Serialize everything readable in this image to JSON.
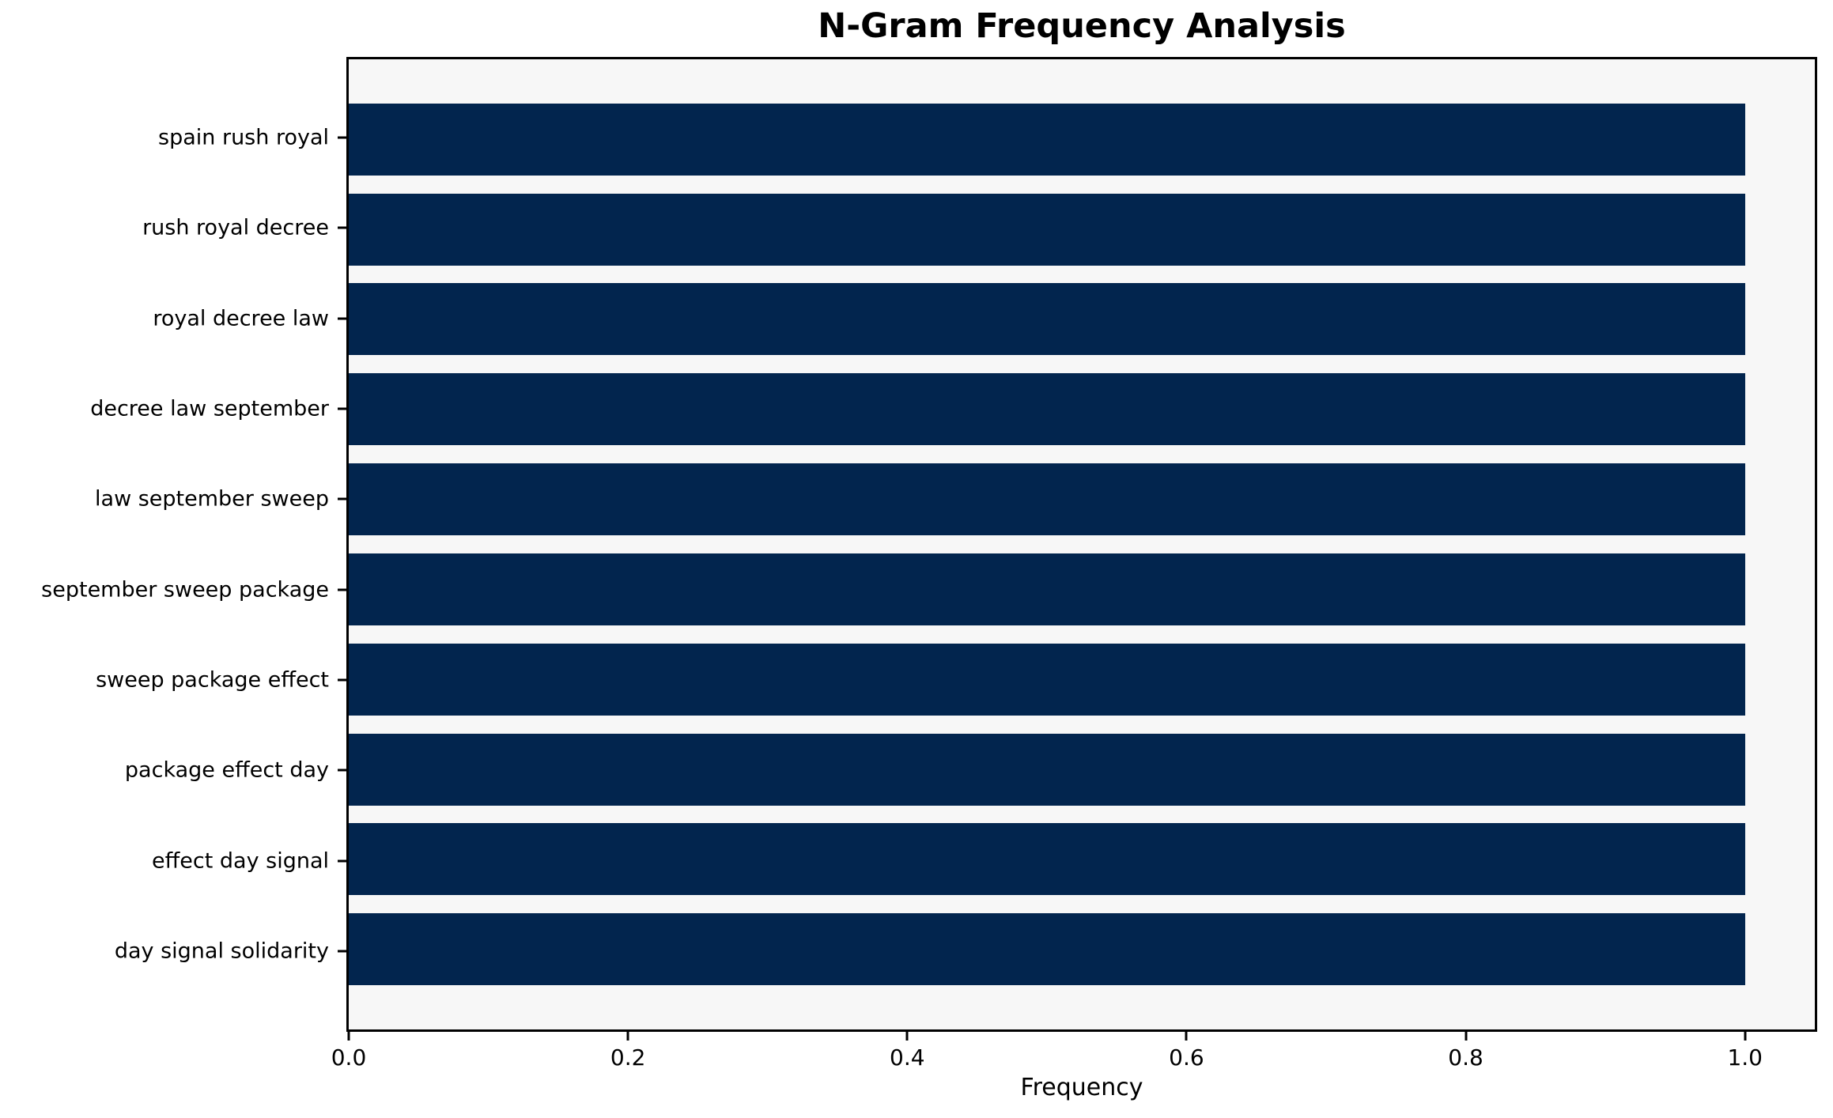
{
  "chart_data": {
    "type": "bar",
    "orientation": "horizontal",
    "title": "N-Gram Frequency Analysis",
    "xlabel": "Frequency",
    "ylabel": "",
    "categories": [
      "spain rush royal",
      "rush royal decree",
      "royal decree law",
      "decree law september",
      "law september sweep",
      "september sweep package",
      "sweep package effect",
      "package effect day",
      "effect day signal",
      "day signal solidarity"
    ],
    "values": [
      1.0,
      1.0,
      1.0,
      1.0,
      1.0,
      1.0,
      1.0,
      1.0,
      1.0,
      1.0
    ],
    "xlim": [
      0,
      1.05
    ],
    "xticks": [
      0.0,
      0.2,
      0.4,
      0.6,
      0.8,
      1.0
    ],
    "xtick_labels": [
      "0.0",
      "0.2",
      "0.4",
      "0.6",
      "0.8",
      "1.0"
    ],
    "bar_height_fraction": 0.8,
    "axis_margin_fraction": 0.05,
    "bar_color": "#02254e",
    "plot_background": "#f7f7f7",
    "figure_background": "#ffffff",
    "spine_color": "#000000",
    "grid": false,
    "legend": null
  }
}
